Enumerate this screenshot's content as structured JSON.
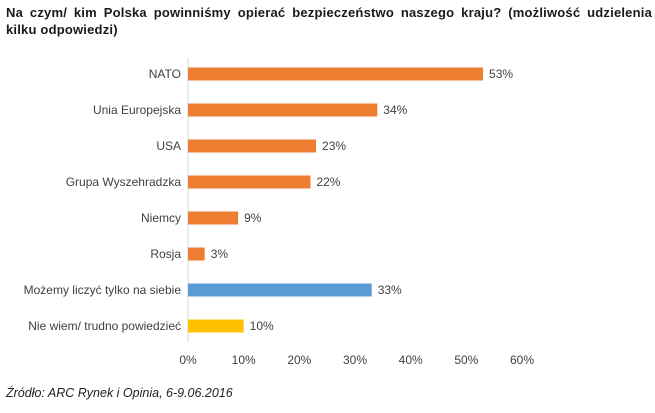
{
  "chart_data": {
    "type": "bar",
    "orientation": "horizontal",
    "title": "Na czym/ kim Polska powinniśmy opierać bezpieczeństwo naszego kraju? (możliwość udzielenia kilku odpowiedzi)",
    "categories": [
      "NATO",
      "Unia Europejska",
      "USA",
      "Grupa Wyszehradzka",
      "Niemcy",
      "Rosja",
      "Możemy liczyć tylko na siebie",
      "Nie wiem/ trudno powiedzieć"
    ],
    "values": [
      53,
      34,
      23,
      22,
      9,
      3,
      33,
      10
    ],
    "value_labels": [
      "53%",
      "34%",
      "23%",
      "22%",
      "9%",
      "3%",
      "33%",
      "10%"
    ],
    "bar_colors": [
      "#ED7D31",
      "#ED7D31",
      "#ED7D31",
      "#ED7D31",
      "#ED7D31",
      "#ED7D31",
      "#5B9BD5",
      "#FFC000"
    ],
    "xlim": [
      0,
      60
    ],
    "xticks": [
      0,
      10,
      20,
      30,
      40,
      50,
      60
    ],
    "xtick_labels": [
      "0%",
      "10%",
      "20%",
      "30%",
      "40%",
      "50%",
      "60%"
    ],
    "xlabel": "",
    "ylabel": "",
    "grid": false
  },
  "source": "Źródło: ARC Rynek i Opinia, 6-9.06.2016"
}
